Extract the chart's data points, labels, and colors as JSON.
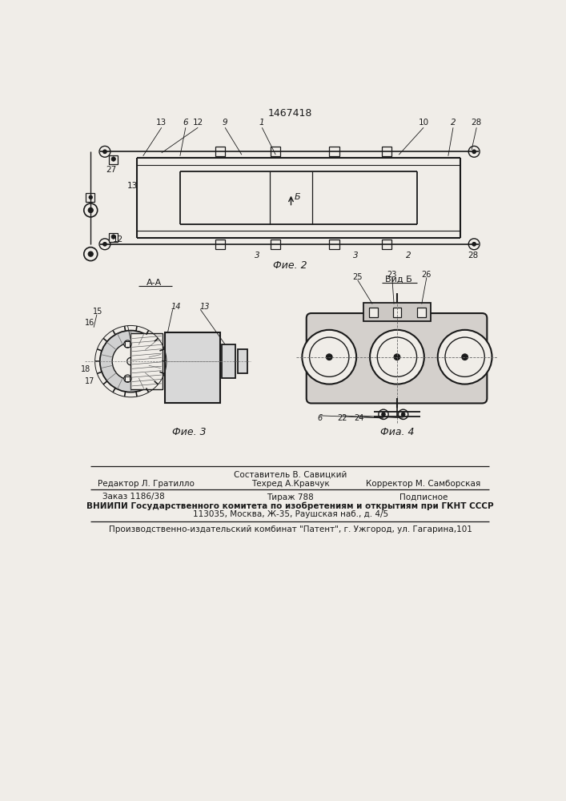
{
  "title_patent": "1467418",
  "background_color": "#f0ede8",
  "line_color": "#1a1a1a",
  "fig2_caption": "Фие. 2",
  "fig3_caption": "Фие. 3",
  "fig4_caption": "Фиа. 4",
  "view_b_label": "Вид Б",
  "section_aa_label": "А-А",
  "footer_line1_left": "Редактор Л. Гратилло",
  "footer_line1_center": "Техред А.Кравчук",
  "footer_line1_center_top": "Составитель В. Савицкий",
  "footer_line1_right": "Корректор М. Самборская",
  "footer_line2_col1": "Заказ 1186/38",
  "footer_line2_col2": "Тираж 788",
  "footer_line2_col3": "Подписное",
  "footer_line3": "ВНИИПИ Государственного комитета по изобретениям и открытиям при ГКНТ СССР",
  "footer_line4": "113035, Москва, Ж-35, Раушская наб., д. 4/5",
  "footer_line5": "Производственно-издательский комбинат \"Патент\", г. Ужгород, ул. Гагарина,101"
}
